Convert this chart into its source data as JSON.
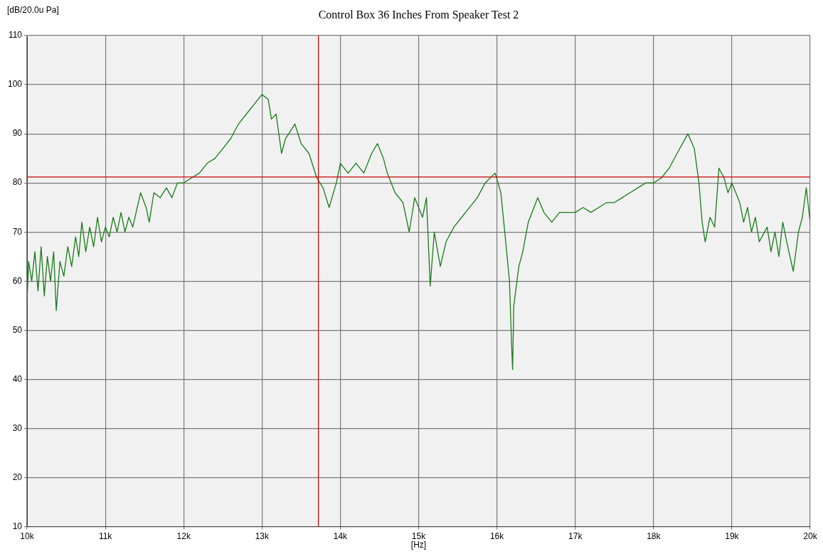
{
  "chart_data": {
    "type": "line",
    "title": "Control Box 36 Inches From Speaker Test 2",
    "xlabel": "[Hz]",
    "ylabel": "[dB/20.0u Pa]",
    "xlim": [
      10000,
      20000
    ],
    "xticks": [
      {
        "value": 10000,
        "label": "10k"
      },
      {
        "value": 11000,
        "label": "11k"
      },
      {
        "value": 12000,
        "label": "12k"
      },
      {
        "value": 13000,
        "label": "13k"
      },
      {
        "value": 14000,
        "label": "14k"
      },
      {
        "value": 15000,
        "label": "15k"
      },
      {
        "value": 16000,
        "label": "16k"
      },
      {
        "value": 17000,
        "label": "17k"
      },
      {
        "value": 18000,
        "label": "18k"
      },
      {
        "value": 19000,
        "label": "19k"
      },
      {
        "value": 20000,
        "label": "20k"
      }
    ],
    "ylim": [
      10,
      110
    ],
    "yticks": [
      10,
      20,
      30,
      40,
      50,
      60,
      70,
      80,
      90,
      100,
      110
    ],
    "grid": true,
    "legend": false,
    "marker": "none",
    "line_style": "solid",
    "ref_lines": [
      {
        "axis": "y",
        "value": 81.2,
        "color": "#cc0000"
      },
      {
        "axis": "x",
        "value": 13720,
        "color": "#cc0000"
      }
    ],
    "series": [
      {
        "color": "#1a7a1a",
        "x": [
          10000,
          10020,
          10060,
          10100,
          10140,
          10180,
          10220,
          10260,
          10300,
          10340,
          10373,
          10420,
          10470,
          10520,
          10570,
          10620,
          10660,
          10700,
          10750,
          10800,
          10850,
          10900,
          10950,
          11000,
          11050,
          11100,
          11150,
          11200,
          11250,
          11300,
          11350,
          11450,
          11520,
          11560,
          11620,
          11700,
          11780,
          11850,
          11920,
          12000,
          12100,
          12200,
          12300,
          12400,
          12500,
          12600,
          12700,
          12800,
          12900,
          13000,
          13080,
          13120,
          13180,
          13250,
          13300,
          13420,
          13500,
          13600,
          13700,
          13780,
          13857,
          13950,
          14000,
          14100,
          14200,
          14300,
          14400,
          14475,
          14550,
          14600,
          14700,
          14800,
          14880,
          14950,
          15050,
          15100,
          15148,
          15200,
          15277,
          15350,
          15450,
          15550,
          15650,
          15750,
          15850,
          15977,
          16050,
          16100,
          16160,
          16185,
          16200,
          16215,
          16280,
          16330,
          16400,
          16521,
          16600,
          16700,
          16800,
          17000,
          17100,
          17200,
          17300,
          17400,
          17500,
          17600,
          17700,
          17800,
          17900,
          18000,
          18100,
          18200,
          18300,
          18438,
          18520,
          18580,
          18620,
          18659,
          18720,
          18780,
          18835,
          18900,
          18950,
          19000,
          19100,
          19150,
          19200,
          19250,
          19300,
          19350,
          19450,
          19500,
          19550,
          19600,
          19650,
          19700,
          19784,
          19850,
          19900,
          19950,
          20000
        ],
        "values": [
          56,
          64,
          60,
          66,
          58,
          67,
          57,
          65,
          60,
          66,
          54,
          64,
          61,
          67,
          63,
          69,
          65,
          72,
          66,
          71,
          67,
          73,
          68,
          71,
          69,
          73,
          70,
          74,
          70,
          73,
          71,
          78,
          75,
          72,
          78,
          77,
          79,
          77,
          80,
          80,
          81,
          82,
          84,
          85,
          87,
          89,
          92,
          94,
          96,
          98,
          97,
          93,
          94,
          86,
          89,
          92,
          88,
          86,
          81,
          79,
          75,
          80,
          84,
          82,
          84,
          82,
          86,
          88,
          85,
          82,
          78,
          76,
          70,
          77,
          73,
          77,
          59,
          70,
          63,
          68,
          71,
          73,
          75,
          77,
          80,
          82,
          78,
          70,
          60,
          48,
          42,
          55,
          63,
          66,
          72,
          77,
          74,
          72,
          74,
          74,
          75,
          74,
          75,
          76,
          76,
          77,
          78,
          79,
          80,
          80,
          81,
          83,
          86,
          90,
          87,
          80,
          72,
          68,
          73,
          71,
          83,
          81,
          78,
          80,
          76,
          72,
          75,
          70,
          73,
          68,
          71,
          66,
          70,
          65,
          72,
          68,
          62,
          70,
          73,
          79,
          72
        ]
      }
    ]
  }
}
